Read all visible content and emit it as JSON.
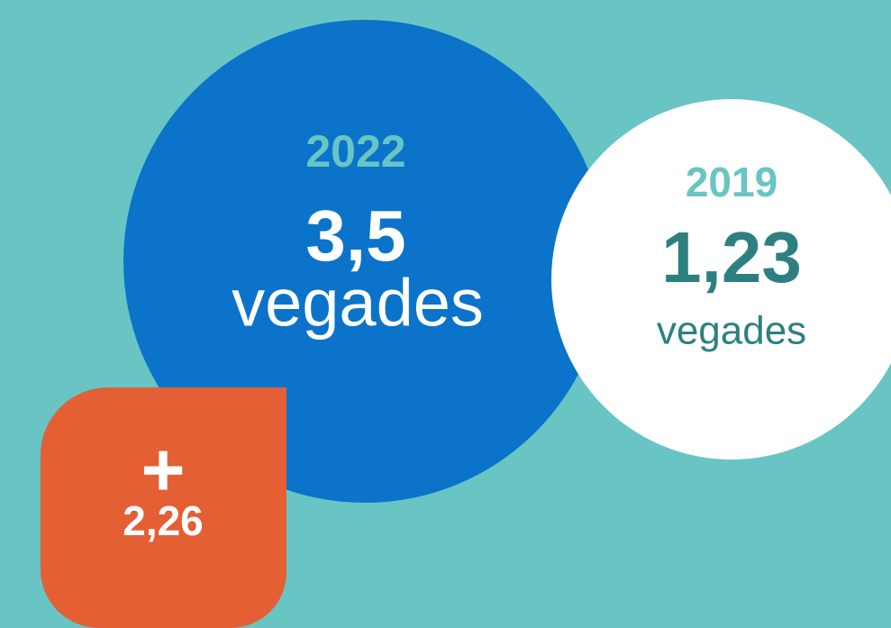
{
  "current": {
    "year": "2022",
    "value": "3,5",
    "unit": "vegades"
  },
  "previous": {
    "year": "2019",
    "value": "1,23",
    "unit": "vegades"
  },
  "difference": {
    "sign": "+",
    "value": "2,26"
  }
}
